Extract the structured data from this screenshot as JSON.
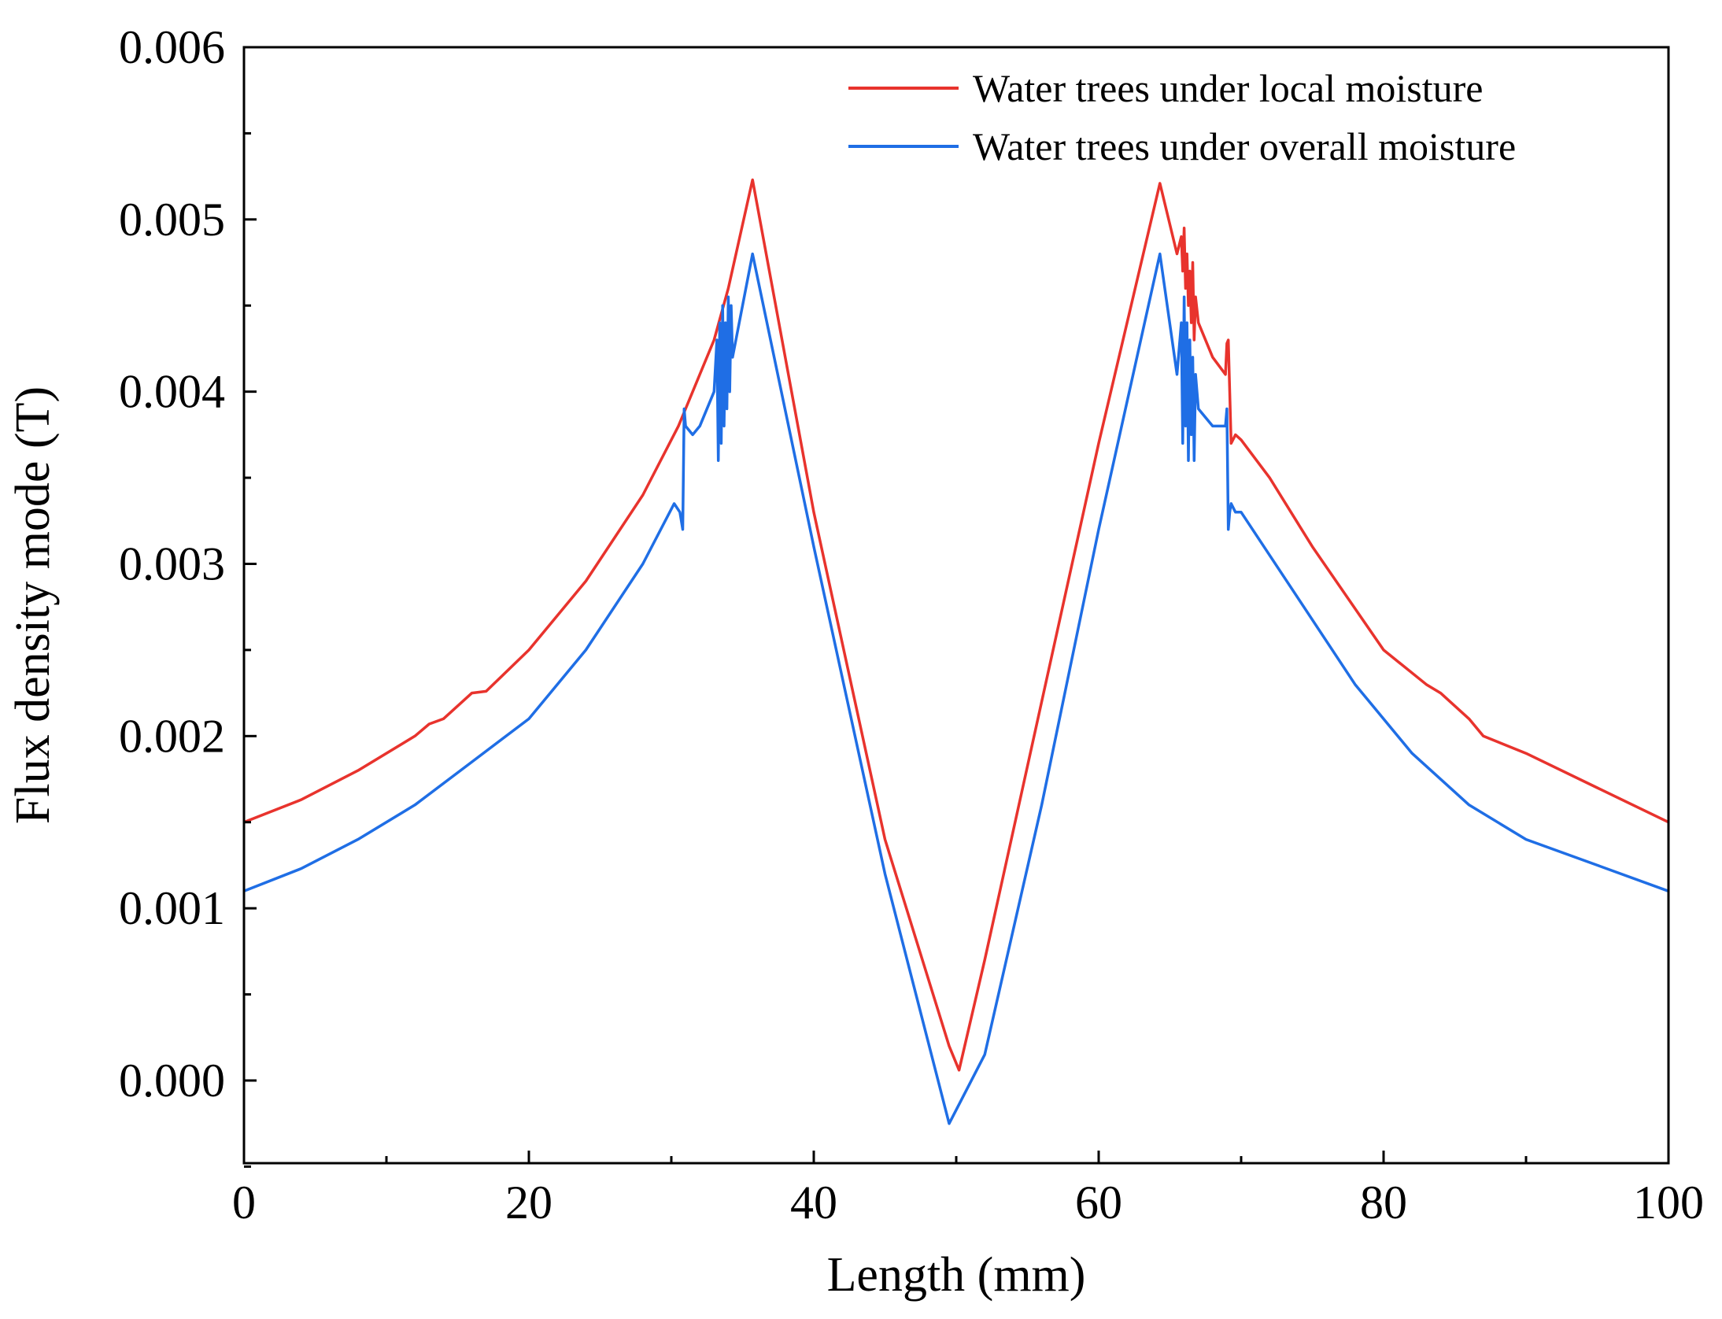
{
  "chart_data": {
    "type": "line",
    "title": "",
    "xlabel": "Length (mm)",
    "ylabel": "Flux density mode (T)",
    "xlim": [
      0,
      100
    ],
    "ylim": [
      -0.00048,
      0.006
    ],
    "grid": false,
    "legend_position": "top-right",
    "x_ticks": [
      {
        "value": 0,
        "label": "0"
      },
      {
        "value": 20,
        "label": "20"
      },
      {
        "value": 40,
        "label": "40"
      },
      {
        "value": 60,
        "label": "60"
      },
      {
        "value": 80,
        "label": "80"
      },
      {
        "value": 100,
        "label": "100"
      }
    ],
    "x_minor_ticks": [
      10,
      30,
      50,
      70,
      90
    ],
    "y_ticks": [
      {
        "value": 0.0,
        "label": "0.000"
      },
      {
        "value": 0.001,
        "label": "0.001"
      },
      {
        "value": 0.002,
        "label": "0.002"
      },
      {
        "value": 0.003,
        "label": "0.003"
      },
      {
        "value": 0.004,
        "label": "0.004"
      },
      {
        "value": 0.005,
        "label": "0.005"
      },
      {
        "value": 0.006,
        "label": "0.006"
      }
    ],
    "y_minor_ticks": [
      -0.0005,
      0.0005,
      0.0015,
      0.0025,
      0.0035,
      0.0045,
      0.0055
    ],
    "series": [
      {
        "name": "Water trees under local moisture",
        "color": "#e8332d",
        "x": [
          0,
          4,
          8,
          12,
          13,
          14,
          16,
          17,
          20,
          24,
          28,
          30.5,
          31,
          33,
          34,
          35.7,
          40,
          45,
          49.5,
          50.2,
          52,
          56,
          60,
          64.3,
          65.5,
          65.8,
          65.9,
          66.0,
          66.1,
          66.2,
          66.3,
          66.4,
          66.5,
          66.6,
          66.7,
          66.8,
          67,
          68,
          68.9,
          69.0,
          69.1,
          69.2,
          69.3,
          69.6,
          70,
          72,
          75,
          80,
          83,
          84,
          86,
          87,
          90,
          95,
          100
        ],
        "y": [
          0.0015,
          0.00163,
          0.0018,
          0.002,
          0.00207,
          0.0021,
          0.00225,
          0.00226,
          0.0025,
          0.0029,
          0.0034,
          0.0038,
          0.0039,
          0.0043,
          0.0046,
          0.00523,
          0.0033,
          0.0014,
          0.0002,
          6e-05,
          0.0007,
          0.0022,
          0.0037,
          0.00521,
          0.0048,
          0.0049,
          0.0047,
          0.00495,
          0.0046,
          0.0048,
          0.0045,
          0.0047,
          0.0044,
          0.00475,
          0.0043,
          0.00455,
          0.0044,
          0.0042,
          0.0041,
          0.00428,
          0.0043,
          0.004,
          0.0037,
          0.00375,
          0.00372,
          0.0035,
          0.0031,
          0.0025,
          0.0023,
          0.00225,
          0.0021,
          0.002,
          0.0019,
          0.0017,
          0.0015
        ]
      },
      {
        "name": "Water trees under overall moisture",
        "color": "#1f6ee5",
        "x": [
          0,
          4,
          8,
          12,
          16,
          20,
          24,
          28,
          30.2,
          30.6,
          30.8,
          30.9,
          31.0,
          31.5,
          32,
          33,
          33.2,
          33.3,
          33.4,
          33.5,
          33.6,
          33.7,
          33.8,
          33.9,
          34.0,
          34.1,
          34.2,
          34.3,
          35.7,
          40,
          45,
          49.5,
          52,
          56,
          60,
          64.3,
          65.5,
          65.8,
          65.9,
          66.0,
          66.1,
          66.2,
          66.3,
          66.4,
          66.5,
          66.6,
          66.7,
          66.8,
          67,
          68,
          68.9,
          69.0,
          69.1,
          69.2,
          69.3,
          69.6,
          70,
          74,
          78,
          82,
          86,
          90,
          95,
          100
        ],
        "y": [
          0.0011,
          0.00123,
          0.0014,
          0.0016,
          0.00185,
          0.0021,
          0.0025,
          0.003,
          0.00335,
          0.0033,
          0.0032,
          0.0039,
          0.0038,
          0.00375,
          0.0038,
          0.004,
          0.0043,
          0.0036,
          0.0044,
          0.0037,
          0.0045,
          0.0038,
          0.0044,
          0.0039,
          0.00455,
          0.004,
          0.0045,
          0.0042,
          0.0048,
          0.0031,
          0.0012,
          -0.00025,
          0.00015,
          0.0016,
          0.0032,
          0.0048,
          0.0041,
          0.0044,
          0.0037,
          0.00455,
          0.0038,
          0.0044,
          0.0036,
          0.0043,
          0.00375,
          0.0042,
          0.0036,
          0.0041,
          0.0039,
          0.0038,
          0.0038,
          0.0039,
          0.0032,
          0.0033,
          0.00335,
          0.0033,
          0.0033,
          0.0028,
          0.0023,
          0.0019,
          0.0016,
          0.0014,
          0.00125,
          0.0011
        ]
      }
    ]
  }
}
